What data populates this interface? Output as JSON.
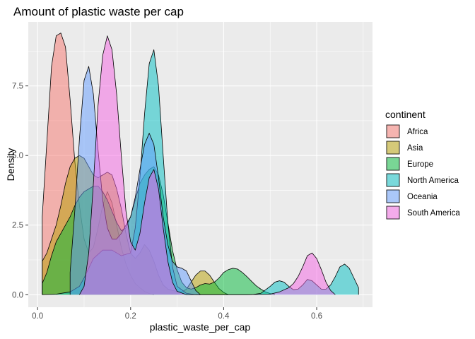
{
  "chart_data": {
    "type": "area",
    "subtype": "density",
    "title": "Amount of plastic waste per cap",
    "xlabel": "plastic_waste_per_cap",
    "ylabel": "Density",
    "xlim": [
      -0.02,
      0.72
    ],
    "ylim": [
      -0.45,
      9.8
    ],
    "xticks": [
      {
        "value": 0.0,
        "label": "0.0"
      },
      {
        "value": 0.2,
        "label": "0.2"
      },
      {
        "value": 0.4,
        "label": "0.4"
      },
      {
        "value": 0.6,
        "label": "0.6"
      }
    ],
    "yticks": [
      {
        "value": 0.0,
        "label": "0.0"
      },
      {
        "value": 2.5,
        "label": "2.5"
      },
      {
        "value": 5.0,
        "label": "5.0"
      },
      {
        "value": 7.5,
        "label": "7.5"
      }
    ],
    "grid": true,
    "legend": {
      "title": "continent",
      "position": "right"
    },
    "series": [
      {
        "name": "Africa",
        "color": "#F8766D",
        "x": [
          0.01,
          0.02,
          0.03,
          0.04,
          0.05,
          0.06,
          0.07,
          0.08,
          0.09,
          0.1,
          0.11,
          0.12,
          0.13,
          0.14,
          0.15,
          0.16,
          0.17,
          0.18,
          0.19,
          0.2,
          0.21,
          0.22,
          0.23,
          0.24,
          0.25
        ],
        "y": [
          2.8,
          5.5,
          8.2,
          9.3,
          9.4,
          8.9,
          7.0,
          4.8,
          3.2,
          2.0,
          1.5,
          1.7,
          2.4,
          3.2,
          3.7,
          3.3,
          2.5,
          1.7,
          1.1,
          0.7,
          0.4,
          0.25,
          0.12,
          0.04,
          0.0
        ]
      },
      {
        "name": "Asia",
        "color": "#B79F00",
        "x": [
          0.01,
          0.02,
          0.03,
          0.04,
          0.05,
          0.06,
          0.07,
          0.08,
          0.09,
          0.1,
          0.11,
          0.12,
          0.13,
          0.14,
          0.15,
          0.16,
          0.17,
          0.18,
          0.19,
          0.2,
          0.21,
          0.22,
          0.23,
          0.24,
          0.25,
          0.26,
          0.27,
          0.28,
          0.29,
          0.3,
          0.31,
          0.32,
          0.33,
          0.34,
          0.35,
          0.36,
          0.37,
          0.38,
          0.39,
          0.4,
          0.41
        ],
        "y": [
          1.2,
          1.5,
          2.0,
          2.5,
          3.2,
          4.0,
          4.6,
          4.9,
          5.0,
          4.9,
          4.6,
          4.3,
          4.2,
          4.3,
          4.4,
          4.3,
          3.8,
          3.1,
          2.2,
          1.5,
          1.3,
          1.5,
          1.8,
          1.6,
          1.2,
          0.7,
          0.35,
          0.2,
          0.15,
          0.12,
          0.1,
          0.2,
          0.45,
          0.7,
          0.85,
          0.85,
          0.7,
          0.45,
          0.22,
          0.08,
          0.0
        ]
      },
      {
        "name": "Europe",
        "color": "#00BA38",
        "x": [
          0.01,
          0.02,
          0.03,
          0.04,
          0.05,
          0.06,
          0.07,
          0.08,
          0.09,
          0.1,
          0.11,
          0.12,
          0.13,
          0.14,
          0.15,
          0.16,
          0.17,
          0.18,
          0.19,
          0.2,
          0.21,
          0.22,
          0.23,
          0.24,
          0.25,
          0.26,
          0.27,
          0.28,
          0.29,
          0.3,
          0.31,
          0.32,
          0.33,
          0.34,
          0.35,
          0.36,
          0.37,
          0.38,
          0.39,
          0.4,
          0.41,
          0.42,
          0.43,
          0.44,
          0.45,
          0.46,
          0.47,
          0.48,
          0.49,
          0.5,
          0.51
        ],
        "y": [
          0.4,
          0.8,
          1.4,
          1.9,
          2.2,
          2.5,
          2.8,
          3.2,
          3.5,
          3.7,
          3.8,
          3.9,
          3.9,
          3.7,
          3.4,
          3.0,
          2.6,
          2.3,
          2.4,
          2.8,
          3.4,
          4.0,
          4.3,
          4.5,
          4.6,
          4.3,
          3.6,
          2.6,
          1.6,
          0.9,
          0.45,
          0.25,
          0.2,
          0.25,
          0.35,
          0.4,
          0.38,
          0.45,
          0.6,
          0.8,
          0.9,
          0.95,
          0.92,
          0.8,
          0.65,
          0.48,
          0.32,
          0.2,
          0.1,
          0.04,
          0.0
        ]
      },
      {
        "name": "North America",
        "color": "#00BFC4",
        "x": [
          0.01,
          0.04,
          0.07,
          0.09,
          0.1,
          0.12,
          0.14,
          0.16,
          0.18,
          0.2,
          0.21,
          0.22,
          0.23,
          0.24,
          0.25,
          0.26,
          0.27,
          0.28,
          0.29,
          0.3,
          0.32,
          0.34,
          0.36,
          0.38,
          0.4,
          0.42,
          0.44,
          0.46,
          0.48,
          0.5,
          0.51,
          0.52,
          0.53,
          0.54,
          0.55,
          0.56,
          0.57,
          0.58,
          0.59,
          0.6,
          0.61,
          0.62,
          0.63,
          0.64,
          0.65,
          0.66,
          0.67,
          0.68,
          0.69
        ],
        "y": [
          0.0,
          0.02,
          0.1,
          0.3,
          0.6,
          1.3,
          1.6,
          1.6,
          1.4,
          1.5,
          2.4,
          4.2,
          6.5,
          8.3,
          8.8,
          7.5,
          5.0,
          2.6,
          1.0,
          0.3,
          0.05,
          0.0,
          0.0,
          0.0,
          0.0,
          0.0,
          0.0,
          0.0,
          0.05,
          0.3,
          0.45,
          0.5,
          0.45,
          0.3,
          0.18,
          0.2,
          0.35,
          0.55,
          0.5,
          0.35,
          0.2,
          0.2,
          0.35,
          0.65,
          1.0,
          1.1,
          0.95,
          0.6,
          0.25
        ]
      },
      {
        "name": "Oceania",
        "color": "#619CFF",
        "x": [
          0.07,
          0.08,
          0.09,
          0.1,
          0.11,
          0.12,
          0.13,
          0.14,
          0.15,
          0.16,
          0.17,
          0.18,
          0.19,
          0.2,
          0.21,
          0.22,
          0.23,
          0.24,
          0.25,
          0.26,
          0.27,
          0.28,
          0.29,
          0.3,
          0.31,
          0.32,
          0.33,
          0.34,
          0.35
        ],
        "y": [
          0.8,
          3.0,
          5.6,
          7.7,
          8.2,
          7.2,
          5.2,
          3.4,
          2.4,
          2.0,
          2.0,
          2.2,
          2.5,
          2.8,
          3.5,
          4.5,
          5.4,
          5.8,
          5.4,
          4.2,
          2.8,
          1.8,
          1.2,
          1.0,
          0.95,
          0.85,
          0.5,
          0.15,
          0.0
        ]
      },
      {
        "name": "South America",
        "color": "#F564E3",
        "x": [
          0.09,
          0.1,
          0.11,
          0.12,
          0.13,
          0.14,
          0.15,
          0.16,
          0.17,
          0.18,
          0.19,
          0.2,
          0.21,
          0.22,
          0.23,
          0.24,
          0.25,
          0.26,
          0.27,
          0.28,
          0.29,
          0.3,
          0.32,
          0.35,
          0.4,
          0.45,
          0.5,
          0.52,
          0.54,
          0.55,
          0.56,
          0.57,
          0.58,
          0.59,
          0.6,
          0.61,
          0.62,
          0.63,
          0.64
        ],
        "y": [
          0.0,
          0.3,
          1.5,
          4.0,
          6.8,
          8.6,
          9.3,
          8.8,
          7.2,
          5.0,
          3.0,
          1.9,
          1.6,
          2.2,
          3.3,
          4.2,
          4.5,
          3.8,
          2.4,
          1.2,
          0.45,
          0.12,
          0.0,
          0.0,
          0.0,
          0.0,
          0.02,
          0.1,
          0.25,
          0.4,
          0.65,
          1.0,
          1.4,
          1.5,
          1.3,
          0.9,
          0.45,
          0.15,
          0.0
        ]
      }
    ]
  }
}
